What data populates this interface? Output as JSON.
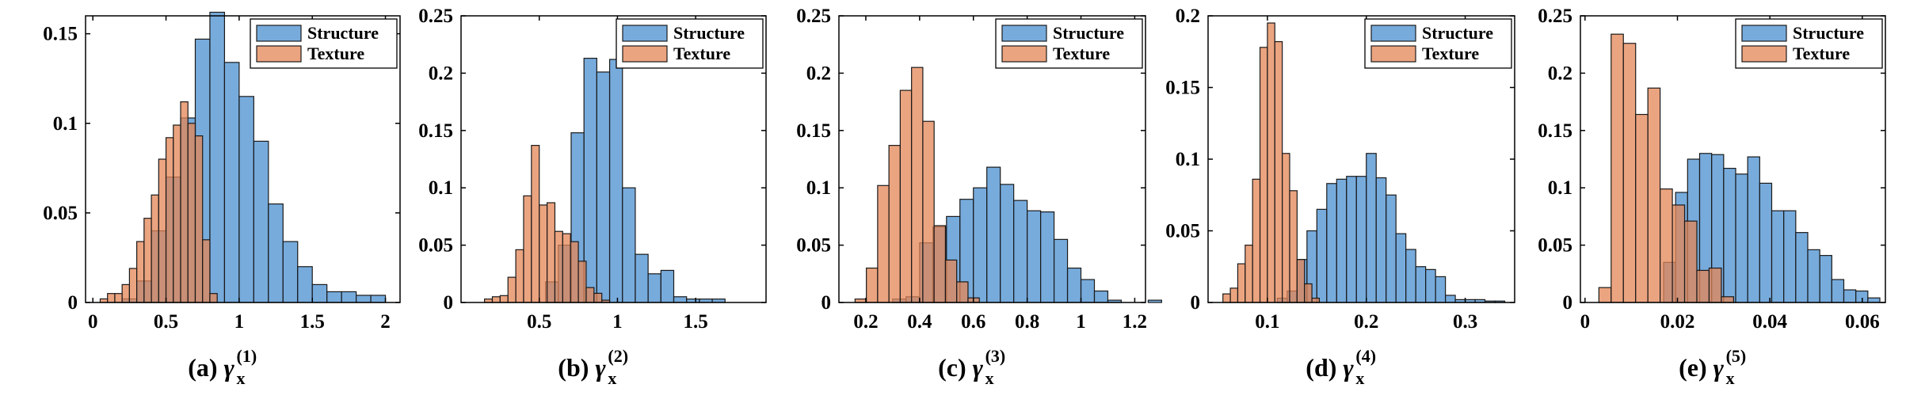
{
  "colors": {
    "structure": "#4a8fd0",
    "texture": "#e48655",
    "bar_edge": "#1a1a1a",
    "bar_opacity": 0.75
  },
  "chart_data": [
    {
      "type": "histogram",
      "caption": {
        "label": "(a)",
        "symbol": "γ",
        "sub": "x",
        "sup": "(1)"
      },
      "legend": {
        "entries": [
          "Structure",
          "Texture"
        ],
        "position": "top-right"
      },
      "xlim": [
        -0.05,
        2.1
      ],
      "ylim": [
        0,
        0.16
      ],
      "xticks": [
        0,
        0.5,
        1,
        1.5,
        2
      ],
      "xtick_labels": [
        "0",
        "0.5",
        "1",
        "1.5",
        "2"
      ],
      "yticks": [
        0,
        0.05,
        0.1,
        0.15
      ],
      "ytick_labels": [
        "0",
        "0.05",
        "0.1",
        "0.15"
      ],
      "series": [
        {
          "name": "Structure",
          "bin_start": 0.2,
          "bin_width": 0.1,
          "values": [
            0.002,
            0.012,
            0.04,
            0.07,
            0.103,
            0.147,
            0.162,
            0.134,
            0.115,
            0.09,
            0.055,
            0.034,
            0.02,
            0.01,
            0.006,
            0.006,
            0.004,
            0.004
          ]
        },
        {
          "name": "Texture",
          "bin_start": 0.05,
          "bin_width": 0.05,
          "values": [
            0.002,
            0.005,
            0.005,
            0.01,
            0.019,
            0.034,
            0.047,
            0.06,
            0.08,
            0.092,
            0.099,
            0.112,
            0.1,
            0.093,
            0.035,
            0.005
          ]
        }
      ]
    },
    {
      "type": "histogram",
      "caption": {
        "label": "(b)",
        "symbol": "γ",
        "sub": "x",
        "sup": "(2)"
      },
      "legend": {
        "entries": [
          "Structure",
          "Texture"
        ],
        "position": "top-right"
      },
      "xlim": [
        0,
        1.95
      ],
      "ylim": [
        0,
        0.25
      ],
      "xticks": [
        0.5,
        1,
        1.5
      ],
      "xtick_labels": [
        "0.5",
        "1",
        "1.5"
      ],
      "yticks": [
        0,
        0.05,
        0.1,
        0.15,
        0.2,
        0.25
      ],
      "ytick_labels": [
        "0",
        "0.05",
        "0.1",
        "0.15",
        "0.2",
        "0.25"
      ],
      "series": [
        {
          "name": "Structure",
          "bin_start": 0.54,
          "bin_width": 0.082,
          "values": [
            0.018,
            0.05,
            0.148,
            0.213,
            0.201,
            0.212,
            0.1,
            0.042,
            0.025,
            0.028,
            0.005,
            0.003,
            0.003,
            0.003
          ]
        },
        {
          "name": "Texture",
          "bin_start": 0.15,
          "bin_width": 0.05,
          "values": [
            0.003,
            0.005,
            0.006,
            0.022,
            0.046,
            0.093,
            0.137,
            0.085,
            0.087,
            0.062,
            0.06,
            0.053,
            0.036,
            0.013,
            0.008,
            0.002
          ]
        }
      ]
    },
    {
      "type": "histogram",
      "caption": {
        "label": "(c)",
        "symbol": "γ",
        "sub": "x",
        "sup": "(3)"
      },
      "legend": {
        "entries": [
          "Structure",
          "Texture"
        ],
        "position": "top-right"
      },
      "xlim": [
        0.1,
        1.24
      ],
      "ylim": [
        0,
        0.25
      ],
      "xticks": [
        0.2,
        0.4,
        0.6,
        0.8,
        1,
        1.2
      ],
      "xtick_labels": [
        "0.2",
        "0.4",
        "0.6",
        "0.8",
        "1",
        "1.2"
      ],
      "yticks": [
        0,
        0.05,
        0.1,
        0.15,
        0.2,
        0.25
      ],
      "ytick_labels": [
        "0",
        "0.05",
        "0.1",
        "0.15",
        "0.2",
        "0.25"
      ],
      "series": [
        {
          "name": "Structure",
          "bin_start": 0.3,
          "bin_width": 0.05,
          "values": [
            0.003,
            0.005,
            0.052,
            0.066,
            0.075,
            0.09,
            0.1,
            0.118,
            0.103,
            0.089,
            0.08,
            0.079,
            0.055,
            0.03,
            0.02,
            0.01,
            0.002,
            0,
            0,
            0.002
          ]
        },
        {
          "name": "Texture",
          "bin_start": 0.16,
          "bin_width": 0.042,
          "values": [
            0.003,
            0.03,
            0.102,
            0.137,
            0.185,
            0.205,
            0.158,
            0.067,
            0.037,
            0.018,
            0.004
          ]
        }
      ]
    },
    {
      "type": "histogram",
      "caption": {
        "label": "(d)",
        "symbol": "γ",
        "sub": "x",
        "sup": "(4)"
      },
      "legend": {
        "entries": [
          "Structure",
          "Texture"
        ],
        "position": "top-right"
      },
      "xlim": [
        0.04,
        0.35
      ],
      "ylim": [
        0,
        0.2
      ],
      "xticks": [
        0.1,
        0.2,
        0.3
      ],
      "xtick_labels": [
        "0.1",
        "0.2",
        "0.3"
      ],
      "yticks": [
        0,
        0.05,
        0.1,
        0.15,
        0.2
      ],
      "ytick_labels": [
        "0",
        "0.05",
        "0.1",
        "0.15",
        "0.2"
      ],
      "series": [
        {
          "name": "Structure",
          "bin_start": 0.11,
          "bin_width": 0.01,
          "values": [
            0.003,
            0.008,
            0.03,
            0.05,
            0.065,
            0.083,
            0.086,
            0.088,
            0.088,
            0.104,
            0.087,
            0.075,
            0.048,
            0.037,
            0.025,
            0.023,
            0.018,
            0.005,
            0.002,
            0.002,
            0.002,
            0.001,
            0.001
          ]
        },
        {
          "name": "Texture",
          "bin_start": 0.055,
          "bin_width": 0.0075,
          "values": [
            0.006,
            0.01,
            0.027,
            0.04,
            0.086,
            0.178,
            0.195,
            0.182,
            0.104,
            0.078,
            0.03,
            0.013,
            0.003
          ]
        }
      ]
    },
    {
      "type": "histogram",
      "caption": {
        "label": "(e)",
        "symbol": "γ",
        "sub": "x",
        "sup": "(5)"
      },
      "legend": {
        "entries": [
          "Structure",
          "Texture"
        ],
        "position": "top-right"
      },
      "xlim": [
        -0.001,
        0.065
      ],
      "ylim": [
        0,
        0.25
      ],
      "xticks": [
        0,
        0.02,
        0.04,
        0.06
      ],
      "xtick_labels": [
        "0",
        "0.02",
        "0.04",
        "0.06"
      ],
      "yticks": [
        0,
        0.05,
        0.1,
        0.15,
        0.2,
        0.25
      ],
      "ytick_labels": [
        "0",
        "0.05",
        "0.1",
        "0.15",
        "0.2",
        "0.25"
      ],
      "series": [
        {
          "name": "Structure",
          "bin_start": 0.017,
          "bin_width": 0.0026,
          "values": [
            0.035,
            0.096,
            0.125,
            0.13,
            0.129,
            0.117,
            0.112,
            0.127,
            0.104,
            0.08,
            0.08,
            0.061,
            0.046,
            0.041,
            0.02,
            0.011,
            0.01,
            0.004
          ]
        },
        {
          "name": "Texture",
          "bin_start": 0.003,
          "bin_width": 0.00265,
          "values": [
            0.013,
            0.234,
            0.226,
            0.164,
            0.187,
            0.099,
            0.085,
            0.071,
            0.028,
            0.03,
            0.005
          ]
        }
      ]
    }
  ]
}
